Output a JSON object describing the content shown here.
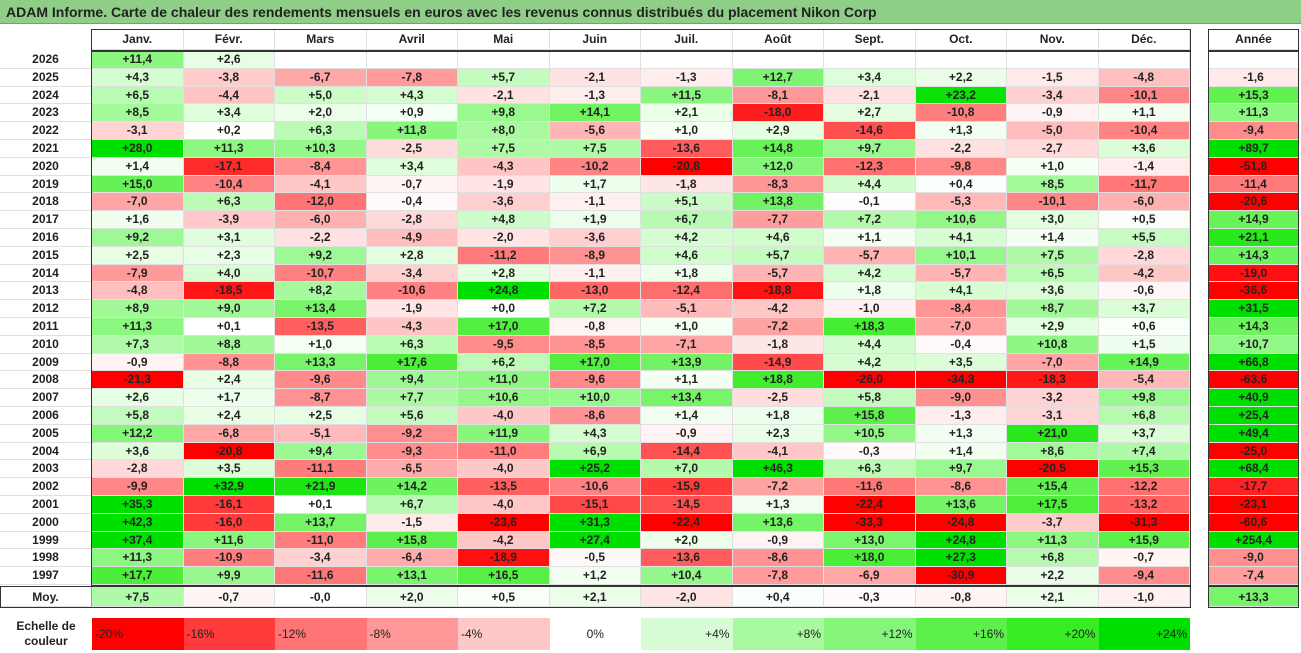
{
  "title": "ADAM Informe. Carte de chaleur des rendements mensuels en euros avec les revenus connus distribués du placement Nikon Corp",
  "chart_data": {
    "type": "heatmap",
    "title": "ADAM Informe. Carte de chaleur des rendements mensuels en euros avec les revenus connus distribués du placement Nikon Corp",
    "months": [
      "Janv.",
      "Févr.",
      "Mars",
      "Avril",
      "Mai",
      "Juin",
      "Juil.",
      "Août",
      "Sept.",
      "Oct.",
      "Nov.",
      "Déc."
    ],
    "annual_label": "Année",
    "avg_label": "Moy.",
    "rows": [
      {
        "year": "2026",
        "values": [
          "+11,4",
          "+2,6",
          "",
          "",
          "",
          "",
          "",
          "",
          "",
          "",
          "",
          ""
        ],
        "annual": ""
      },
      {
        "year": "2025",
        "values": [
          "+4,3",
          "-3,8",
          "-6,7",
          "-7,8",
          "+5,7",
          "-2,1",
          "-1,3",
          "+12,7",
          "+3,4",
          "+2,2",
          "-1,5",
          "-4,8"
        ],
        "annual": "-1,6"
      },
      {
        "year": "2024",
        "values": [
          "+6,5",
          "-4,4",
          "+5,0",
          "+4,3",
          "-2,1",
          "-1,3",
          "+11,5",
          "-8,1",
          "-2,1",
          "+23,2",
          "-3,4",
          "-10,1"
        ],
        "annual": "+15,3"
      },
      {
        "year": "2023",
        "values": [
          "+8,5",
          "+3,4",
          "+2,0",
          "+0,9",
          "+9,8",
          "+14,1",
          "+2,1",
          "-18,0",
          "+2,7",
          "-10,8",
          "-0,9",
          "+1,1"
        ],
        "annual": "+11,3"
      },
      {
        "year": "2022",
        "values": [
          "-3,1",
          "+0,2",
          "+6,3",
          "+11,8",
          "+8,0",
          "-5,6",
          "+1,0",
          "+2,9",
          "-14,6",
          "+1,3",
          "-5,0",
          "-10,4"
        ],
        "annual": "-9,4"
      },
      {
        "year": "2021",
        "values": [
          "+28,0",
          "+11,3",
          "+10,3",
          "-2,5",
          "+7,5",
          "+7,5",
          "-13,6",
          "+14,8",
          "+9,7",
          "-2,2",
          "-2,7",
          "+3,6"
        ],
        "annual": "+89,7"
      },
      {
        "year": "2020",
        "values": [
          "+1,4",
          "-17,1",
          "-8,4",
          "+3,4",
          "-4,3",
          "-10,2",
          "-20,8",
          "+12,0",
          "-12,3",
          "-9,8",
          "+1,0",
          "-1,4"
        ],
        "annual": "-51,8"
      },
      {
        "year": "2019",
        "values": [
          "+15,0",
          "-10,4",
          "-4,1",
          "-0,7",
          "-1,9",
          "+1,7",
          "-1,8",
          "-8,3",
          "+4,4",
          "+0,4",
          "+8,5",
          "-11,7"
        ],
        "annual": "-11,4"
      },
      {
        "year": "2018",
        "values": [
          "-7,0",
          "+6,3",
          "-12,0",
          "-0,4",
          "-3,6",
          "-1,1",
          "+5,1",
          "+13,8",
          "-0,1",
          "-5,3",
          "-10,1",
          "-6,0"
        ],
        "annual": "-20,6"
      },
      {
        "year": "2017",
        "values": [
          "+1,6",
          "-3,9",
          "-6,0",
          "-2,8",
          "+4,8",
          "+1,9",
          "+6,7",
          "-7,7",
          "+7,2",
          "+10,6",
          "+3,0",
          "+0,5"
        ],
        "annual": "+14,9"
      },
      {
        "year": "2016",
        "values": [
          "+9,2",
          "+3,1",
          "-2,2",
          "-4,9",
          "-2,0",
          "-3,6",
          "+4,2",
          "+4,6",
          "+1,1",
          "+4,1",
          "+1,4",
          "+5,5"
        ],
        "annual": "+21,1"
      },
      {
        "year": "2015",
        "values": [
          "+2,5",
          "+2,3",
          "+9,2",
          "+2,8",
          "-11,2",
          "-8,9",
          "+4,6",
          "+5,7",
          "-5,7",
          "+10,1",
          "+7,5",
          "-2,8"
        ],
        "annual": "+14,3"
      },
      {
        "year": "2014",
        "values": [
          "-7,9",
          "+4,0",
          "-10,7",
          "-3,4",
          "+2,8",
          "-1,1",
          "+1,8",
          "-5,7",
          "+4,2",
          "-5,7",
          "+6,5",
          "-4,2"
        ],
        "annual": "-19,0"
      },
      {
        "year": "2013",
        "values": [
          "-4,8",
          "-18,5",
          "+8,2",
          "-10,6",
          "+24,8",
          "-13,0",
          "-12,4",
          "-18,8",
          "+1,8",
          "+4,1",
          "+3,6",
          "-0,6"
        ],
        "annual": "-36,6"
      },
      {
        "year": "2012",
        "values": [
          "+8,9",
          "+9,0",
          "+13,4",
          "-1,9",
          "+0,0",
          "+7,2",
          "-5,1",
          "-4,2",
          "-1,0",
          "-8,4",
          "+8,7",
          "+3,7"
        ],
        "annual": "+31,5"
      },
      {
        "year": "2011",
        "values": [
          "+11,3",
          "+0,1",
          "-13,5",
          "-4,3",
          "+17,0",
          "-0,8",
          "+1,0",
          "-7,2",
          "+18,3",
          "-7,0",
          "+2,9",
          "+0,6"
        ],
        "annual": "+14,3"
      },
      {
        "year": "2010",
        "values": [
          "+7,3",
          "+8,8",
          "+1,0",
          "+6,3",
          "-9,5",
          "-8,5",
          "-7,1",
          "-1,8",
          "+4,4",
          "-0,4",
          "+10,8",
          "+1,5"
        ],
        "annual": "+10,7"
      },
      {
        "year": "2009",
        "values": [
          "-0,9",
          "-8,8",
          "+13,3",
          "+17,6",
          "+6,2",
          "+17,0",
          "+13,9",
          "-14,9",
          "+4,2",
          "+3,5",
          "-7,0",
          "+14,9"
        ],
        "annual": "+66,8"
      },
      {
        "year": "2008",
        "values": [
          "-21,3",
          "+2,4",
          "-9,6",
          "+9,4",
          "+11,0",
          "-9,6",
          "+1,1",
          "+18,8",
          "-26,0",
          "-34,3",
          "-18,3",
          "-5,4"
        ],
        "annual": "-63,6"
      },
      {
        "year": "2007",
        "values": [
          "+2,6",
          "+1,7",
          "-8,7",
          "+7,7",
          "+10,6",
          "+10,0",
          "+13,4",
          "-2,5",
          "+5,8",
          "-9,0",
          "-3,2",
          "+9,8"
        ],
        "annual": "+40,9"
      },
      {
        "year": "2006",
        "values": [
          "+5,8",
          "+2,4",
          "+2,5",
          "+5,6",
          "-4,0",
          "-8,6",
          "+1,4",
          "+1,8",
          "+15,8",
          "-1,3",
          "-3,1",
          "+6,8"
        ],
        "annual": "+25,4"
      },
      {
        "year": "2005",
        "values": [
          "+12,2",
          "-6,8",
          "-5,1",
          "-9,2",
          "+11,9",
          "+4,3",
          "-0,9",
          "+2,3",
          "+10,5",
          "+1,3",
          "+21,0",
          "+3,7"
        ],
        "annual": "+49,4"
      },
      {
        "year": "2004",
        "values": [
          "+3,6",
          "-20,8",
          "+9,4",
          "-9,3",
          "-11,0",
          "+6,9",
          "-14,4",
          "-4,1",
          "-0,3",
          "+1,4",
          "+8,6",
          "+7,4"
        ],
        "annual": "-25,0"
      },
      {
        "year": "2003",
        "values": [
          "-2,8",
          "+3,5",
          "-11,1",
          "-6,5",
          "-4,0",
          "+25,2",
          "+7,0",
          "+46,3",
          "+6,3",
          "+9,7",
          "-20,5",
          "+15,3"
        ],
        "annual": "+68,4"
      },
      {
        "year": "2002",
        "values": [
          "-9,9",
          "+32,9",
          "+21,9",
          "+14,2",
          "-13,5",
          "-10,6",
          "-15,9",
          "-7,2",
          "-11,6",
          "-8,6",
          "+15,4",
          "-12,2"
        ],
        "annual": "-17,7"
      },
      {
        "year": "2001",
        "values": [
          "+35,3",
          "-16,1",
          "+0,1",
          "+6,7",
          "-4,0",
          "-15,1",
          "-14,5",
          "+1,3",
          "-22,4",
          "+13,6",
          "+17,5",
          "-13,2"
        ],
        "annual": "-23,1"
      },
      {
        "year": "2000",
        "values": [
          "+42,3",
          "-16,0",
          "+13,7",
          "-1,5",
          "-23,6",
          "+31,3",
          "-22,4",
          "+13,6",
          "-33,3",
          "-24,8",
          "-3,7",
          "-31,3"
        ],
        "annual": "-60,6"
      },
      {
        "year": "1999",
        "values": [
          "+37,4",
          "+11,6",
          "-11,0",
          "+15,8",
          "-4,2",
          "+27,4",
          "+2,0",
          "-0,9",
          "+13,0",
          "+24,8",
          "+11,3",
          "+15,9"
        ],
        "annual": "+254,4"
      },
      {
        "year": "1998",
        "values": [
          "+11,3",
          "-10,9",
          "-3,4",
          "-6,4",
          "-18,9",
          "-0,5",
          "-13,6",
          "-8,6",
          "+18,0",
          "+27,3",
          "+6,8",
          "-0,7"
        ],
        "annual": "-9,0"
      },
      {
        "year": "1997",
        "values": [
          "+17,7",
          "+9,9",
          "-11,6",
          "+13,1",
          "+16,5",
          "+1,2",
          "+10,4",
          "-7,8",
          "-6,9",
          "-30,9",
          "+2,2",
          "-9,4"
        ],
        "annual": "-7,4"
      }
    ],
    "average": {
      "values": [
        "+7,5",
        "-0,7",
        "-0,0",
        "+2,0",
        "+0,5",
        "+2,1",
        "-2,0",
        "+0,4",
        "-0,3",
        "-0,8",
        "+2,1",
        "-1,0"
      ],
      "annual": "+13,3"
    },
    "scale_label": "Echelle de couleur",
    "scale": [
      {
        "label": "-20%",
        "value": -20,
        "color": "#ff0000"
      },
      {
        "label": "-16%",
        "value": -16,
        "color": "#ff3b3b"
      },
      {
        "label": "-12%",
        "value": -12,
        "color": "#ff7474"
      },
      {
        "label": "-8%",
        "value": -8,
        "color": "#ff9999"
      },
      {
        "label": "-4%",
        "value": -4,
        "color": "#ffc8c8"
      },
      {
        "label": "0%",
        "value": 0,
        "color": "#ffffff"
      },
      {
        "label": "+4%",
        "value": 4,
        "color": "#d8fdd4"
      },
      {
        "label": "+8%",
        "value": 8,
        "color": "#a8f9a0"
      },
      {
        "label": "+12%",
        "value": 12,
        "color": "#86f67a"
      },
      {
        "label": "+16%",
        "value": 16,
        "color": "#5bf04a"
      },
      {
        "label": "+20%",
        "value": 20,
        "color": "#36ec22"
      },
      {
        "label": "+24%",
        "value": 24,
        "color": "#00e000"
      }
    ]
  }
}
